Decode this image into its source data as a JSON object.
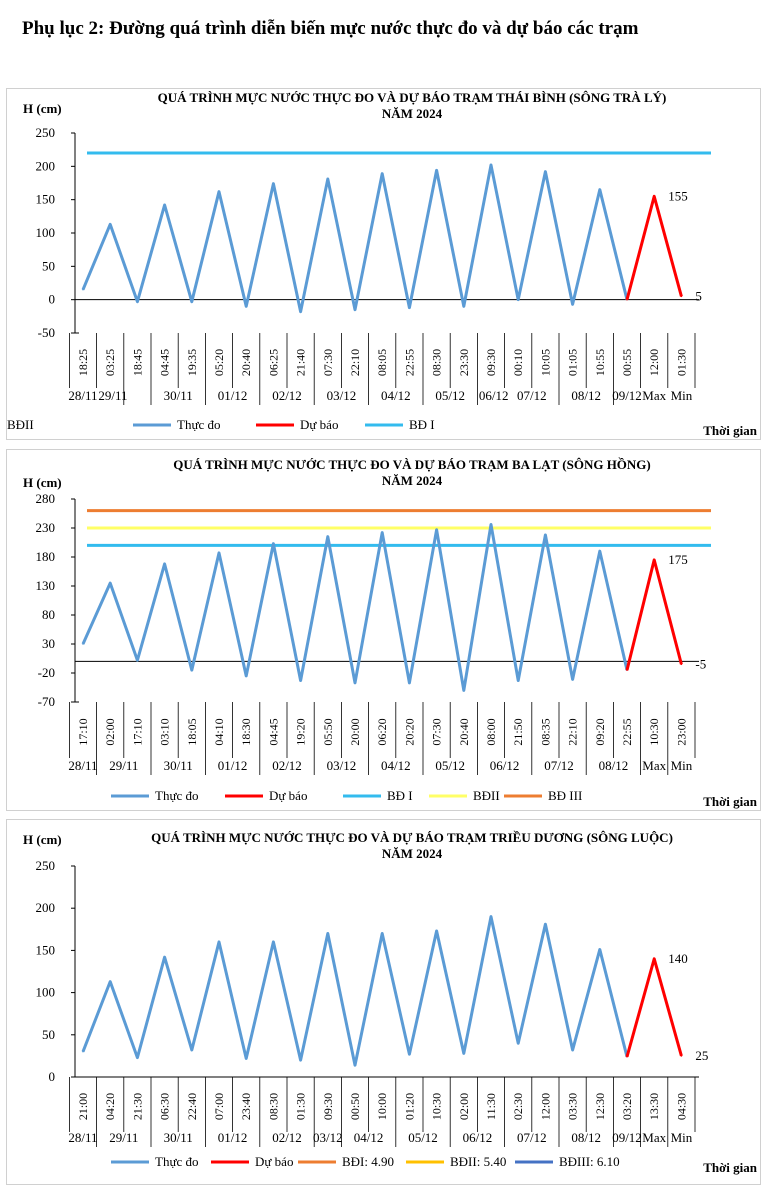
{
  "page": {
    "title": "Phụ lục 2: Đường quá trình diễn biến mực nước thực đo và dự báo các trạm"
  },
  "colors": {
    "observed": "#5B9BD5",
    "forecast": "#FF0000",
    "bd1": "#33BBEE",
    "bd2": "#FFFF66",
    "bd3": "#ED7D31",
    "bd2_c3": "#FFC000",
    "bd3_c3": "#4472C4"
  },
  "chart_data": [
    {
      "type": "line",
      "title": "QUÁ TRÌNH MỰC NƯỚC THỰC ĐO VÀ DỰ BÁO TRẠM THÁI BÌNH (SÔNG TRÀ LÝ)",
      "subtitle": "NĂM 2024",
      "ylabel": "H (cm)",
      "xlabel": "Thời gian",
      "ylim": [
        -50,
        250
      ],
      "yticks": [
        -50,
        0,
        50,
        100,
        150,
        200,
        250
      ],
      "times": [
        "18:25",
        "03:25",
        "18:45",
        "04:45",
        "19:35",
        "05:20",
        "20:40",
        "06:25",
        "21:40",
        "07:30",
        "22:10",
        "08:05",
        "22:55",
        "08:30",
        "23:30",
        "09:30",
        "00:10",
        "10:05",
        "01:05",
        "10:55",
        "00:55",
        "12:00",
        "01:30"
      ],
      "days": [
        "28/11",
        "29/11",
        "30/11",
        "01/12",
        "02/12",
        "03/12",
        "04/12",
        "05/12",
        "06/12",
        "07/12",
        "08/12",
        "09/12",
        "Max",
        "Min"
      ],
      "day_positions": [
        0,
        1.1,
        3.5,
        5.5,
        7.5,
        9.5,
        11.5,
        13.5,
        15.1,
        16.5,
        18.5,
        20,
        21,
        22
      ],
      "group_boundaries": [
        1.5,
        2.5,
        4.5,
        6.5,
        8.5,
        10.5,
        12.5,
        14.5,
        17.5,
        19.5
      ],
      "series": [
        {
          "name": "Thực đo",
          "values": [
            15,
            113,
            -3,
            142,
            -3,
            162,
            -10,
            174,
            -18,
            181,
            -15,
            189,
            -12,
            194,
            -10,
            202,
            0,
            192,
            -7,
            165,
            0,
            null,
            null
          ]
        },
        {
          "name": "Dự báo",
          "values": [
            null,
            null,
            null,
            null,
            null,
            null,
            null,
            null,
            null,
            null,
            null,
            null,
            null,
            null,
            null,
            null,
            null,
            null,
            null,
            null,
            0,
            155,
            5
          ]
        }
      ],
      "thresholds": [
        {
          "name": "BĐ I",
          "value": 220,
          "color": "#33BBEE"
        },
        {
          "name": "BĐII",
          "value": null,
          "color": "#FFFF66"
        }
      ],
      "annotations": [
        {
          "index": 21,
          "value": 155,
          "text": "155"
        },
        {
          "index": 22,
          "value": 5,
          "text": "5"
        }
      ]
    },
    {
      "type": "line",
      "title": "QUÁ TRÌNH MỰC NƯỚC THỰC ĐO VÀ DỰ BÁO TRẠM BA LẠT (SÔNG HỒNG)",
      "subtitle": "NĂM 2024",
      "ylabel": "H (cm)",
      "xlabel": "Thời gian",
      "ylim": [
        -70,
        280
      ],
      "yticks": [
        -70,
        -20,
        30,
        80,
        130,
        180,
        230,
        280
      ],
      "times": [
        "17:10",
        "02:00",
        "17:10",
        "03:10",
        "18:05",
        "04:10",
        "18:30",
        "04:45",
        "19:20",
        "05:50",
        "20:00",
        "06:20",
        "20:20",
        "07:30",
        "20:40",
        "08:00",
        "21:50",
        "08:35",
        "22:10",
        "09:20",
        "22:55",
        "10:30",
        "23:00"
      ],
      "days": [
        "28/11",
        "29/11",
        "30/11",
        "01/12",
        "02/12",
        "03/12",
        "04/12",
        "05/12",
        "06/12",
        "07/12",
        "08/12",
        "Max",
        "Min"
      ],
      "day_positions": [
        0,
        1.5,
        3.5,
        5.5,
        7.5,
        9.5,
        11.5,
        13.5,
        15.5,
        17.5,
        19.5,
        21,
        22
      ],
      "group_boundaries": [
        0.5,
        2.5,
        4.5,
        6.5,
        8.5,
        10.5,
        12.5,
        14.5,
        16.5,
        18.5,
        20.5,
        21.5
      ],
      "series": [
        {
          "name": "Thực đo",
          "values": [
            30,
            135,
            2,
            168,
            -15,
            187,
            -25,
            203,
            -33,
            215,
            -37,
            222,
            -37,
            227,
            -50,
            236,
            -33,
            218,
            -31,
            190,
            -15,
            null,
            null
          ]
        },
        {
          "name": "Dự báo",
          "values": [
            null,
            null,
            null,
            null,
            null,
            null,
            null,
            null,
            null,
            null,
            null,
            null,
            null,
            null,
            null,
            null,
            null,
            null,
            null,
            null,
            -15,
            175,
            -5
          ]
        }
      ],
      "thresholds": [
        {
          "name": "BĐ I",
          "value": 200,
          "color": "#33BBEE"
        },
        {
          "name": "BĐII",
          "value": 230,
          "color": "#FFFF66"
        },
        {
          "name": "BĐ III",
          "value": 260,
          "color": "#ED7D31"
        }
      ],
      "annotations": [
        {
          "index": 21,
          "value": 175,
          "text": "175"
        },
        {
          "index": 22,
          "value": -5,
          "text": "-5"
        }
      ]
    },
    {
      "type": "line",
      "title": "QUÁ TRÌNH MỰC NƯỚC THỰC ĐO VÀ DỰ BÁO TRẠM TRIỀU DƯƠNG (SÔNG LUỘC)",
      "subtitle": "NĂM 2024",
      "ylabel": "H (cm)",
      "xlabel": "Thời gian",
      "ylim": [
        0,
        250
      ],
      "yticks": [
        0,
        50,
        100,
        150,
        200,
        250
      ],
      "times": [
        "21:00",
        "04:20",
        "21:30",
        "06:30",
        "22:40",
        "07:00",
        "23:40",
        "08:30",
        "01:30",
        "09:30",
        "00:50",
        "10:00",
        "01:20",
        "10:30",
        "02:00",
        "11:30",
        "02:30",
        "12:00",
        "03:30",
        "12:30",
        "03:20",
        "13:30",
        "04:30"
      ],
      "days": [
        "28/11",
        "29/11",
        "30/11",
        "01/12",
        "02/12",
        "03/12",
        "04/12",
        "05/12",
        "06/12",
        "07/12",
        "08/12",
        "09/12",
        "Max",
        "Min"
      ],
      "day_positions": [
        0,
        1.5,
        3.5,
        5.5,
        7.5,
        9,
        10.5,
        12.5,
        14.5,
        16.5,
        18.5,
        20,
        21,
        22
      ],
      "group_boundaries": [
        0.5,
        2.5,
        4.5,
        6.5,
        8.5,
        9.5,
        11.5,
        13.5,
        15.5,
        17.5,
        19.5,
        20.5,
        21.5
      ],
      "series": [
        {
          "name": "Thực đo",
          "values": [
            30,
            113,
            23,
            142,
            32,
            160,
            22,
            160,
            20,
            170,
            14,
            170,
            27,
            173,
            28,
            190,
            40,
            181,
            32,
            151,
            24,
            null,
            null
          ]
        },
        {
          "name": "Dự báo",
          "values": [
            null,
            null,
            null,
            null,
            null,
            null,
            null,
            null,
            null,
            null,
            null,
            null,
            null,
            null,
            null,
            null,
            null,
            null,
            null,
            null,
            24,
            140,
            25
          ]
        }
      ],
      "thresholds": [
        {
          "name": "BĐI: 4.90",
          "value": null,
          "color": "#ED7D31"
        },
        {
          "name": "BĐII: 5.40",
          "value": null,
          "color": "#FFC000"
        },
        {
          "name": "BĐIII: 6.10",
          "value": null,
          "color": "#4472C4"
        }
      ],
      "annotations": [
        {
          "index": 21,
          "value": 140,
          "text": "140"
        },
        {
          "index": 22,
          "value": 25,
          "text": "25"
        }
      ]
    }
  ]
}
